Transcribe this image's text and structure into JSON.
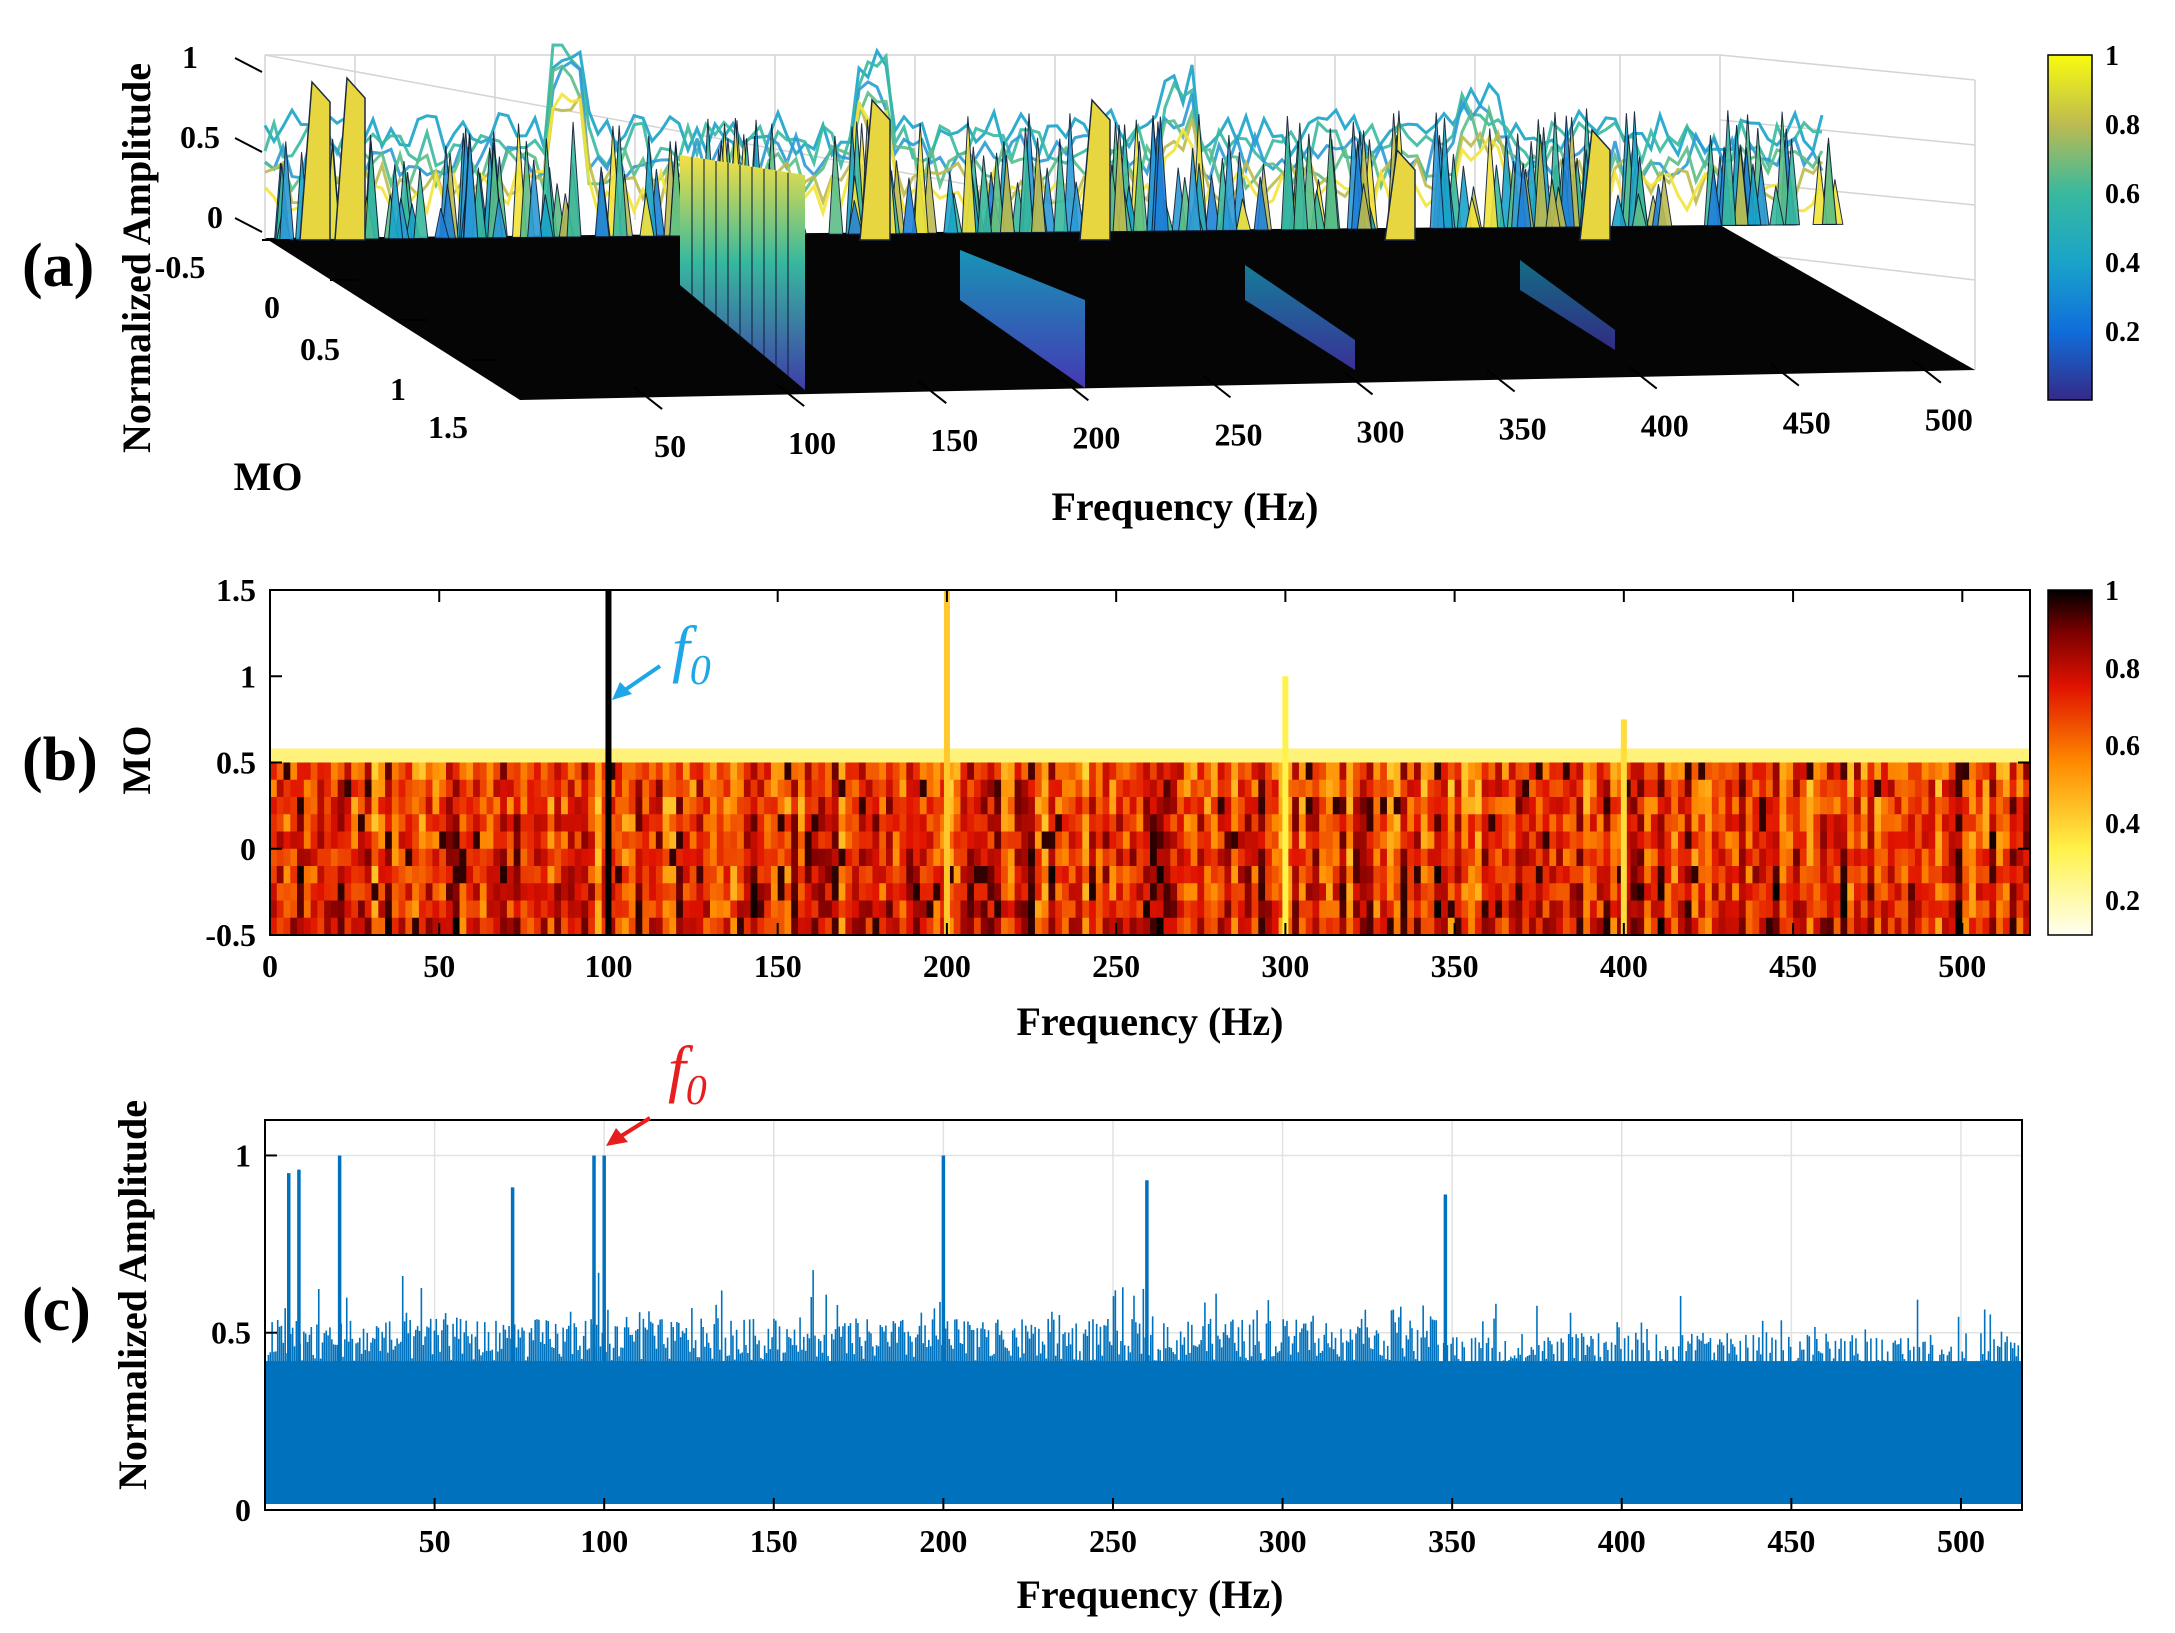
{
  "figure": {
    "panel_labels": [
      "(a)",
      "(b)",
      "(c)"
    ],
    "colors": {
      "spectrum": "#0072BD",
      "f0_b": "#1EA7E6",
      "f0_c": "#E81E1E"
    }
  },
  "chart_data": [
    {
      "id": "a",
      "type": "surface",
      "title": "",
      "xlabel": "Frequency (Hz)",
      "ylabel": "MO",
      "zlabel": "Normalized Amplitude",
      "x_ticks": [
        "50",
        "100",
        "150",
        "200",
        "250",
        "300",
        "350",
        "400",
        "450",
        "500"
      ],
      "y_ticks": [
        "0",
        "0.5",
        "1",
        "1.5"
      ],
      "z_ticks": [
        "-0.5",
        "0",
        "0.5",
        "1"
      ],
      "xlim": [
        0,
        512
      ],
      "ylim": [
        -0.5,
        1.5
      ],
      "zlim": [
        -0.5,
        1
      ],
      "colormap": "parula",
      "colorbar_ticks": [
        "0.2",
        "0.4",
        "0.6",
        "0.8",
        "1"
      ],
      "peaks": [
        {
          "freq": 100,
          "value": 1.0
        },
        {
          "freq": 200,
          "value": 0.85
        },
        {
          "freq": 300,
          "value": 0.6
        },
        {
          "freq": 400,
          "value": 0.5
        }
      ]
    },
    {
      "id": "b",
      "type": "heatmap",
      "title": "",
      "xlabel": "Frequency (Hz)",
      "ylabel": "MO",
      "x_ticks": [
        "0",
        "50",
        "100",
        "150",
        "200",
        "250",
        "300",
        "350",
        "400",
        "450",
        "500"
      ],
      "y_ticks": [
        "-0.5",
        "0",
        "0.5",
        "1",
        "1.5"
      ],
      "xlim": [
        0,
        520
      ],
      "ylim": [
        -0.5,
        1.5
      ],
      "colormap": "hot (reversed)",
      "colorbar_ticks": [
        "0.2",
        "0.4",
        "0.6",
        "0.8",
        "1"
      ],
      "band_mo": [
        -0.5,
        0.5
      ],
      "spikes": [
        {
          "freq": 100,
          "mo_top": 1.5,
          "value": 1.0
        },
        {
          "freq": 200,
          "mo_top": 1.5,
          "value": 0.35
        },
        {
          "freq": 300,
          "mo_top": 1.0,
          "value": 0.25
        },
        {
          "freq": 400,
          "mo_top": 0.75,
          "value": 0.3
        }
      ],
      "annotation": {
        "text": "f",
        "subscript": "0",
        "freq": 100
      }
    },
    {
      "id": "c",
      "type": "bar",
      "title": "",
      "xlabel": "Frequency (Hz)",
      "ylabel": "Normalized Amplitude",
      "x_ticks": [
        "50",
        "100",
        "150",
        "200",
        "250",
        "300",
        "350",
        "400",
        "450",
        "500"
      ],
      "y_ticks": [
        "0",
        "0.5",
        "1"
      ],
      "xlim": [
        0,
        518
      ],
      "ylim": [
        0,
        1.1
      ],
      "peaks": [
        {
          "freq": 7,
          "value": 0.95
        },
        {
          "freq": 10,
          "value": 0.96
        },
        {
          "freq": 22,
          "value": 1.0
        },
        {
          "freq": 73,
          "value": 0.91
        },
        {
          "freq": 97,
          "value": 1.0
        },
        {
          "freq": 100,
          "value": 1.0
        },
        {
          "freq": 200,
          "value": 1.0
        },
        {
          "freq": 260,
          "value": 0.93
        },
        {
          "freq": 348,
          "value": 0.89
        }
      ],
      "noise_floor": 0.42,
      "annotation": {
        "text": "f",
        "subscript": "0",
        "freq": 100
      }
    }
  ]
}
